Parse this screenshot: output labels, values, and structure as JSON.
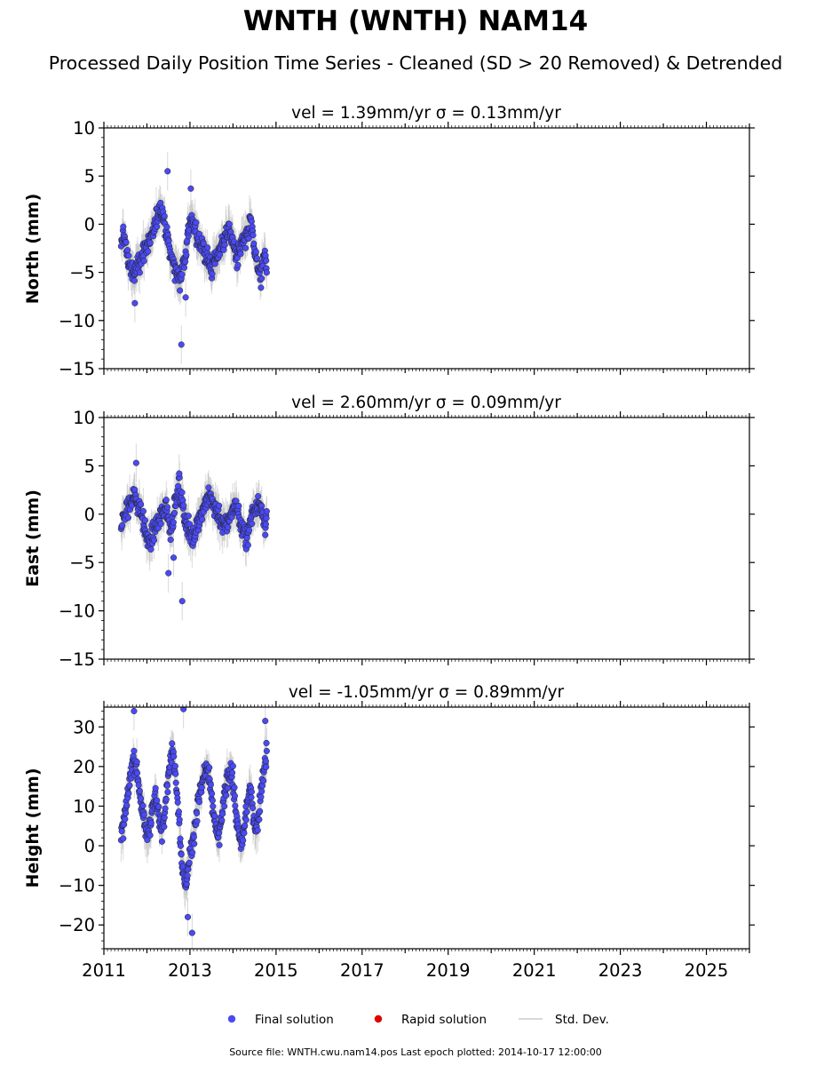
{
  "figure": {
    "title": "WNTH (WNTH) NAM14",
    "subtitle": "Processed Daily Position Time Series - Cleaned (SD > 20 Removed) & Detrended",
    "footer": "Source file: WNTH.cwu.nam14.pos  Last epoch plotted: 2014-10-17 12:00:00"
  },
  "legend": {
    "placement": "bottom-center",
    "items": [
      {
        "label": "Final solution",
        "color": "#4a4af4"
      },
      {
        "label": "Rapid solution",
        "color": "#e00000"
      },
      {
        "label": "Std. Dev.",
        "color": "#cccccc"
      }
    ]
  },
  "colors": {
    "final": "#4a4af4",
    "rapid": "#e00000",
    "stddev": "#bdbdbd",
    "edge": "#222222"
  },
  "chart_data": [
    {
      "type": "scatter",
      "component": "north",
      "title": "vel = 1.39mm/yr   σ = 0.13mm/yr",
      "ylabel": "North (mm)",
      "xlabel": "",
      "xlim": [
        2011.0,
        2026.0
      ],
      "ylim": [
        -15,
        10
      ],
      "yticks": [
        -15,
        -10,
        -5,
        0,
        5,
        10
      ],
      "ytick_labels": [
        "−15",
        "−10",
        "−5",
        "0",
        "5",
        "10"
      ],
      "xticks": [
        2011,
        2013,
        2015,
        2017,
        2019,
        2021,
        2023,
        2025
      ],
      "xtick_labels": [],
      "grid": false,
      "series": [
        {
          "x": [
            2011.4,
            2011.45,
            2011.5,
            2011.55,
            2011.6,
            2011.65,
            2011.7,
            2011.75,
            2011.8,
            2011.85,
            2011.9,
            2011.95,
            2012.0,
            2012.05,
            2012.1,
            2012.15,
            2012.2,
            2012.25,
            2012.3,
            2012.35,
            2012.4,
            2012.45,
            2012.5,
            2012.55,
            2012.6,
            2012.65,
            2012.7,
            2012.75,
            2012.8,
            2012.85,
            2012.9,
            2012.95,
            2013.0,
            2013.05,
            2013.1,
            2013.15,
            2013.2,
            2013.25,
            2013.3,
            2013.35,
            2013.4,
            2013.45,
            2013.5,
            2013.55,
            2013.6,
            2013.65,
            2013.7,
            2013.75,
            2013.8,
            2013.85,
            2013.9,
            2013.95,
            2014.0,
            2014.05,
            2014.1,
            2014.15,
            2014.2,
            2014.25,
            2014.3,
            2014.35,
            2014.4,
            2014.45,
            2014.5,
            2014.55,
            2014.6,
            2014.65,
            2014.7,
            2014.75,
            2014.79
          ],
          "y": [
            -3.0,
            -0.5,
            -2.0,
            -3.5,
            -4.0,
            -5.0,
            -5.5,
            -4.5,
            -4.0,
            -3.5,
            -3.0,
            -2.5,
            -2.0,
            -2.0,
            -1.5,
            -1.0,
            0.0,
            1.0,
            2.0,
            1.5,
            0.5,
            -1.0,
            -2.0,
            -3.0,
            -4.0,
            -4.5,
            -5.0,
            -5.5,
            -5.0,
            -4.0,
            -3.0,
            -1.0,
            0.5,
            0.0,
            -0.5,
            -1.0,
            -1.5,
            -2.0,
            -2.5,
            -3.0,
            -3.5,
            -4.0,
            -4.5,
            -4.0,
            -3.5,
            -3.0,
            -2.5,
            -2.0,
            -1.5,
            -1.0,
            -0.5,
            -1.0,
            -2.0,
            -3.0,
            -3.5,
            -3.0,
            -2.0,
            -1.5,
            -2.0,
            -1.0,
            0.5,
            -1.0,
            -3.0,
            -4.0,
            -5.0,
            -6.0,
            -4.0,
            -3.0,
            -5.0
          ],
          "outliers_x": [
            2012.48,
            2012.8,
            2013.02,
            2011.72,
            2012.9
          ],
          "outliers_y": [
            5.5,
            -12.5,
            3.7,
            -8.2,
            -7.6
          ]
        }
      ]
    },
    {
      "type": "scatter",
      "component": "east",
      "title": "vel = 2.60mm/yr   σ = 0.09mm/yr",
      "ylabel": "East (mm)",
      "xlabel": "",
      "xlim": [
        2011.0,
        2026.0
      ],
      "ylim": [
        -15,
        10
      ],
      "yticks": [
        -15,
        -10,
        -5,
        0,
        5,
        10
      ],
      "ytick_labels": [
        "−15",
        "−10",
        "−5",
        "0",
        "5",
        "10"
      ],
      "xticks": [
        2011,
        2013,
        2015,
        2017,
        2019,
        2021,
        2023,
        2025
      ],
      "xtick_labels": [],
      "grid": false,
      "series": [
        {
          "x": [
            2011.4,
            2011.45,
            2011.5,
            2011.55,
            2011.6,
            2011.65,
            2011.7,
            2011.75,
            2011.8,
            2011.85,
            2011.9,
            2011.95,
            2012.0,
            2012.05,
            2012.1,
            2012.15,
            2012.2,
            2012.25,
            2012.3,
            2012.35,
            2012.4,
            2012.45,
            2012.5,
            2012.55,
            2012.6,
            2012.65,
            2012.7,
            2012.75,
            2012.8,
            2012.85,
            2012.9,
            2012.95,
            2013.0,
            2013.05,
            2013.1,
            2013.15,
            2013.2,
            2013.25,
            2013.3,
            2013.35,
            2013.4,
            2013.45,
            2013.5,
            2013.55,
            2013.6,
            2013.65,
            2013.7,
            2013.75,
            2013.8,
            2013.85,
            2013.9,
            2013.95,
            2014.0,
            2014.05,
            2014.1,
            2014.15,
            2014.2,
            2014.25,
            2014.3,
            2014.35,
            2014.4,
            2014.45,
            2014.5,
            2014.55,
            2014.6,
            2014.65,
            2014.7,
            2014.75,
            2014.79
          ],
          "y": [
            -1.0,
            -0.5,
            0.0,
            0.5,
            1.0,
            1.5,
            2.0,
            1.5,
            1.0,
            0.5,
            -0.5,
            -1.5,
            -2.5,
            -3.0,
            -2.5,
            -2.0,
            -1.5,
            -1.0,
            -0.5,
            0.0,
            0.5,
            1.0,
            -0.5,
            -1.5,
            -0.5,
            1.0,
            2.0,
            2.5,
            1.5,
            0.5,
            -0.5,
            -1.5,
            -2.0,
            -2.5,
            -2.0,
            -1.0,
            -0.5,
            0.0,
            0.5,
            1.0,
            1.5,
            2.0,
            1.5,
            1.0,
            0.5,
            0.0,
            -0.5,
            -1.0,
            -1.5,
            -1.0,
            -0.5,
            0.0,
            0.5,
            1.0,
            0.5,
            -0.5,
            -1.5,
            -2.0,
            -2.5,
            -2.0,
            -1.0,
            0.0,
            0.5,
            1.0,
            1.5,
            0.5,
            -0.5,
            -1.0,
            0.0
          ],
          "outliers_x": [
            2011.75,
            2012.5,
            2012.82,
            2012.75,
            2012.62
          ],
          "outliers_y": [
            5.3,
            -6.1,
            -9.0,
            4.2,
            -4.5
          ]
        }
      ]
    },
    {
      "type": "scatter",
      "component": "height",
      "title": "vel = -1.05mm/yr   σ = 0.89mm/yr",
      "ylabel": "Height (mm)",
      "xlabel": "",
      "xlim": [
        2011.0,
        2026.0
      ],
      "ylim": [
        -26,
        35
      ],
      "yticks": [
        -20,
        -10,
        0,
        10,
        20,
        30
      ],
      "ytick_labels": [
        "−20",
        "−10",
        "0",
        "10",
        "20",
        "30"
      ],
      "xticks": [
        2011,
        2013,
        2015,
        2017,
        2019,
        2021,
        2023,
        2025
      ],
      "xtick_labels": [
        "2011",
        "2013",
        "2015",
        "2017",
        "2019",
        "2021",
        "2023",
        "2025"
      ],
      "grid": false,
      "series": [
        {
          "x": [
            2011.4,
            2011.45,
            2011.5,
            2011.55,
            2011.6,
            2011.65,
            2011.7,
            2011.75,
            2011.8,
            2011.85,
            2011.9,
            2011.95,
            2012.0,
            2012.05,
            2012.1,
            2012.15,
            2012.2,
            2012.25,
            2012.3,
            2012.35,
            2012.4,
            2012.45,
            2012.5,
            2012.55,
            2012.6,
            2012.65,
            2012.7,
            2012.75,
            2012.8,
            2012.85,
            2012.9,
            2012.95,
            2013.0,
            2013.05,
            2013.1,
            2013.15,
            2013.2,
            2013.25,
            2013.3,
            2013.35,
            2013.4,
            2013.45,
            2013.5,
            2013.55,
            2013.6,
            2013.65,
            2013.7,
            2013.75,
            2013.8,
            2013.85,
            2013.9,
            2013.95,
            2014.0,
            2014.05,
            2014.1,
            2014.15,
            2014.2,
            2014.25,
            2014.3,
            2014.35,
            2014.4,
            2014.45,
            2014.5,
            2014.55,
            2014.6,
            2014.65,
            2014.7,
            2014.75,
            2014.79
          ],
          "y": [
            2.0,
            5.0,
            8.0,
            12.0,
            16.0,
            20.0,
            22.0,
            20.0,
            16.0,
            12.0,
            8.0,
            5.0,
            3.0,
            5.0,
            8.0,
            10.0,
            12.0,
            9.0,
            6.0,
            4.0,
            8.0,
            14.0,
            18.0,
            22.0,
            24.0,
            20.0,
            14.0,
            6.0,
            -2.0,
            -8.0,
            -10.0,
            -6.0,
            -2.0,
            0.0,
            4.0,
            8.0,
            12.0,
            14.0,
            16.0,
            18.0,
            20.0,
            16.0,
            12.0,
            8.0,
            4.0,
            2.0,
            4.0,
            8.0,
            12.0,
            16.0,
            18.0,
            20.0,
            16.0,
            10.0,
            5.0,
            2.0,
            0.0,
            4.0,
            8.0,
            12.0,
            14.0,
            10.0,
            6.0,
            4.0,
            8.0,
            14.0,
            18.0,
            22.0,
            24.0
          ],
          "outliers_x": [
            2011.7,
            2012.85,
            2013.05,
            2014.75,
            2012.95
          ],
          "outliers_y": [
            34.0,
            34.5,
            -22.0,
            31.5,
            -18.0
          ]
        }
      ]
    }
  ]
}
